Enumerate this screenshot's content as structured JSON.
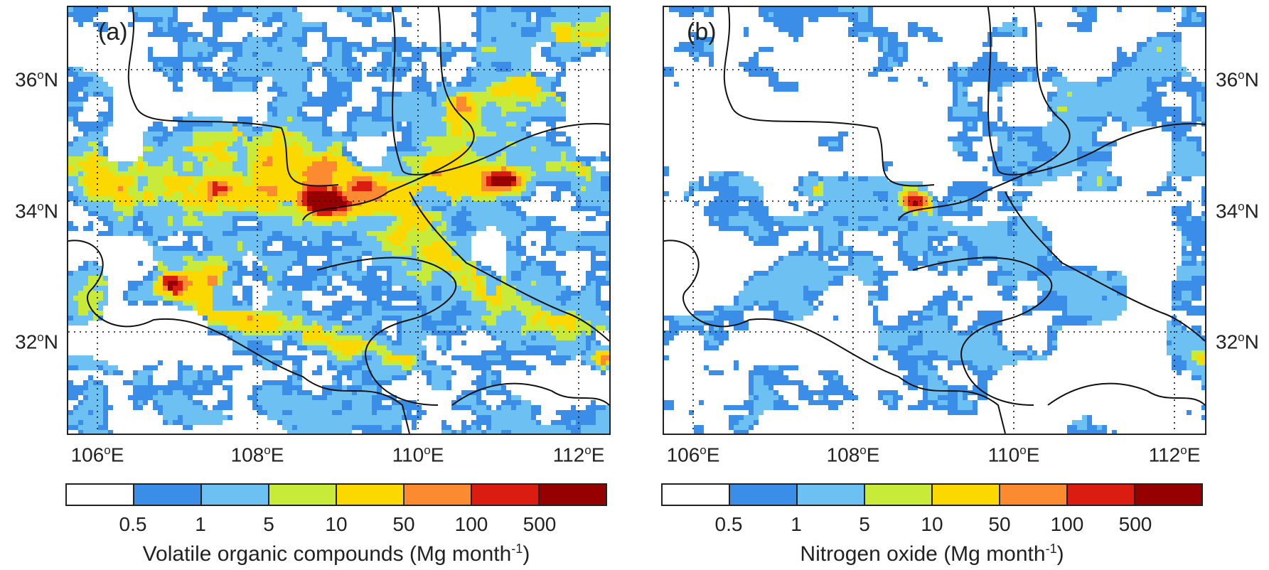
{
  "colors": {
    "levels": [
      "#ffffff",
      "#3a8ee8",
      "#6cc0f2",
      "#c8eb3a",
      "#fbd800",
      "#fb8a30",
      "#db1c10",
      "#960000"
    ],
    "border": "#111111",
    "grid": "#111111"
  },
  "lat_labels": [
    {
      "deg": "36",
      "unit": "o",
      "hem": "N"
    },
    {
      "deg": "34",
      "unit": "o",
      "hem": "N"
    },
    {
      "deg": "32",
      "unit": "o",
      "hem": "N"
    }
  ],
  "lon_labels": [
    {
      "deg": "106",
      "unit": "o",
      "hem": "E"
    },
    {
      "deg": "108",
      "unit": "o",
      "hem": "E"
    },
    {
      "deg": "110",
      "unit": "o",
      "hem": "E"
    },
    {
      "deg": "112",
      "unit": "o",
      "hem": "E"
    }
  ],
  "colorbar_ticks": [
    "0.5",
    "1",
    "5",
    "10",
    "50",
    "100",
    "500"
  ],
  "panels": [
    {
      "id": "a",
      "label": "(a)",
      "title_main": "Volatile organic compounds (Mg month",
      "title_sup": "-1",
      "title_end": ")",
      "intensity": 1.0
    },
    {
      "id": "b",
      "label": "(b)",
      "title_main": "Nitrogen oxide (Mg month",
      "title_sup": "-1",
      "title_end": ")",
      "intensity": 0.55
    }
  ]
}
